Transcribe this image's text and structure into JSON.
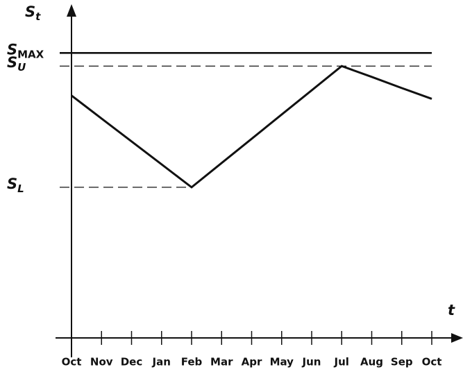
{
  "chart_data": {
    "type": "line",
    "ylabel": "St",
    "xlabel": "t",
    "categories": [
      "Oct",
      "Nov",
      "Dec",
      "Jan",
      "Feb",
      "Mar",
      "Apr",
      "May",
      "Jun",
      "Jul",
      "Aug",
      "Sep",
      "Oct"
    ],
    "series": [
      {
        "color": "#111111",
        "values": [
          74,
          67,
          60,
          53,
          46,
          53.4,
          60.8,
          68.2,
          75.6,
          83,
          79.7,
          76.3,
          73
        ]
      }
    ],
    "ylim": [
      0,
      100
    ],
    "yticks": [
      {
        "value": 46,
        "label": "SL"
      },
      {
        "value": 83,
        "label": "SU"
      },
      {
        "value": 87,
        "label": "SMAX"
      }
    ],
    "ytick_line_styles": [
      "dashed",
      "dashed",
      "solid"
    ]
  }
}
